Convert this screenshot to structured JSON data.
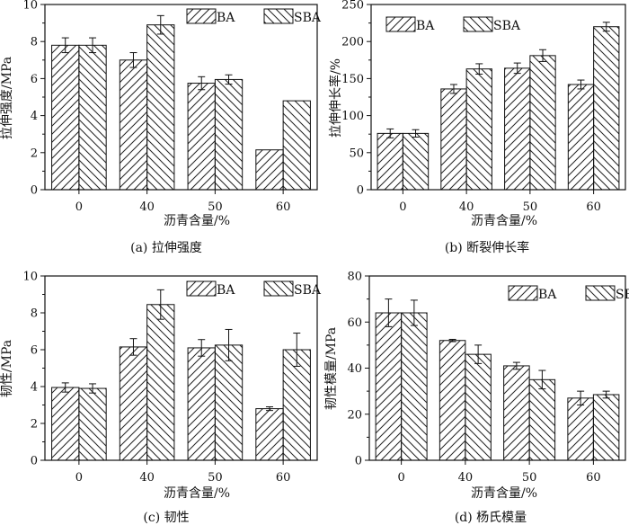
{
  "chart_data": [
    {
      "type": "bar",
      "title": "(a) 拉伸强度",
      "xlabel": "沥青含量/%",
      "ylabel": "拉伸强度/MPa",
      "categories": [
        "0",
        "40",
        "50",
        "60"
      ],
      "ylim": [
        0,
        10
      ],
      "yticks": [
        0,
        2,
        4,
        6,
        8,
        10
      ],
      "legend": "top-right",
      "series": [
        {
          "name": "BA",
          "values": [
            7.8,
            7.0,
            5.75,
            2.15
          ],
          "errors": [
            0.4,
            0.4,
            0.35,
            0
          ]
        },
        {
          "name": "SBA",
          "values": [
            7.8,
            8.9,
            5.95,
            4.8
          ],
          "errors": [
            0.4,
            0.5,
            0.25,
            0
          ]
        }
      ]
    },
    {
      "type": "bar",
      "title": "(b) 断裂伸长率",
      "xlabel": "沥青含量/%",
      "ylabel": "拉伸伸长率/%",
      "categories": [
        "0",
        "40",
        "50",
        "60"
      ],
      "ylim": [
        0,
        250
      ],
      "yticks": [
        0,
        50,
        100,
        150,
        200,
        250
      ],
      "legend": "top-left",
      "series": [
        {
          "name": "BA",
          "values": [
            76,
            136,
            164,
            142
          ],
          "errors": [
            6,
            6,
            7,
            6
          ]
        },
        {
          "name": "SBA",
          "values": [
            76,
            163,
            181,
            220
          ],
          "errors": [
            5,
            7,
            8,
            6
          ]
        }
      ]
    },
    {
      "type": "bar",
      "title": "(c) 韧性",
      "xlabel": "沥青含量/%",
      "ylabel": "韧性/MPa",
      "categories": [
        "0",
        "40",
        "50",
        "60"
      ],
      "ylim": [
        0,
        10
      ],
      "yticks": [
        0,
        2,
        4,
        6,
        8,
        10
      ],
      "legend": "top-right",
      "series": [
        {
          "name": "BA",
          "values": [
            3.95,
            6.15,
            6.1,
            2.8
          ],
          "errors": [
            0.25,
            0.45,
            0.45,
            0.1
          ]
        },
        {
          "name": "SBA",
          "values": [
            3.9,
            8.45,
            6.25,
            6.0
          ],
          "errors": [
            0.25,
            0.8,
            0.85,
            0.9
          ]
        }
      ]
    },
    {
      "type": "bar",
      "title": "(d) 杨氏模量",
      "xlabel": "沥青含量/%",
      "ylabel": "韧性模量/MPa",
      "categories": [
        "0",
        "40",
        "50",
        "60"
      ],
      "ylim": [
        0,
        80
      ],
      "yticks": [
        0,
        20,
        40,
        60,
        80
      ],
      "legend": "top-right",
      "series": [
        {
          "name": "BA",
          "values": [
            64,
            52,
            41,
            27
          ],
          "errors": [
            6,
            0.5,
            1.5,
            3
          ]
        },
        {
          "name": "SBA",
          "values": [
            64,
            46,
            35,
            28.5
          ],
          "errors": [
            5.5,
            4,
            4,
            1.5
          ]
        }
      ]
    }
  ]
}
